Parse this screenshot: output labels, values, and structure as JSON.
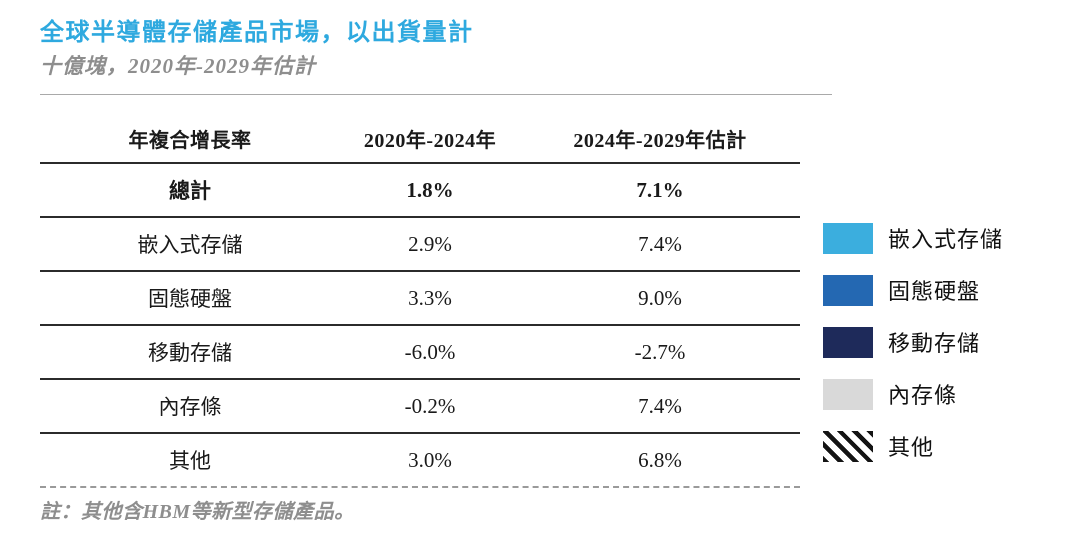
{
  "chart_data": {
    "type": "table",
    "title": "全球半導體存儲產品市場，以出貨量計",
    "subtitle": "十億塊，2020年-2029年估計",
    "columns": [
      "年複合增長率",
      "2020年-2024年",
      "2024年-2029年估計"
    ],
    "rows": [
      [
        "總計",
        "1.8%",
        "7.1%"
      ],
      [
        "嵌入式存儲",
        "2.9%",
        "7.4%"
      ],
      [
        "固態硬盤",
        "3.3%",
        "9.0%"
      ],
      [
        "移動存儲",
        "-6.0%",
        "-2.7%"
      ],
      [
        "內存條",
        "-0.2%",
        "7.4%"
      ],
      [
        "其他",
        "3.0%",
        "6.8%"
      ]
    ],
    "note": "註：其他含HBM等新型存儲產品。",
    "layout": {
      "legend_position": "right",
      "grid": "horizontal-rules",
      "last_rule_style": "dashed"
    }
  },
  "legend": {
    "items": [
      {
        "label": "嵌入式存儲",
        "swatch": "solid",
        "color": "#3BAEDE"
      },
      {
        "label": "固態硬盤",
        "swatch": "solid",
        "color": "#2468B2"
      },
      {
        "label": "移動存儲",
        "swatch": "solid",
        "color": "#1E2A5A"
      },
      {
        "label": "內存條",
        "swatch": "solid",
        "color": "#D9D9D9"
      },
      {
        "label": "其他",
        "swatch": "diagonal-stripes",
        "color": "#141414"
      }
    ]
  },
  "colors": {
    "title": "#2EA9DF",
    "rule": "#A9A9A9",
    "table_rule": "#2B2B2B",
    "muted_text": "#8E8E8E"
  }
}
